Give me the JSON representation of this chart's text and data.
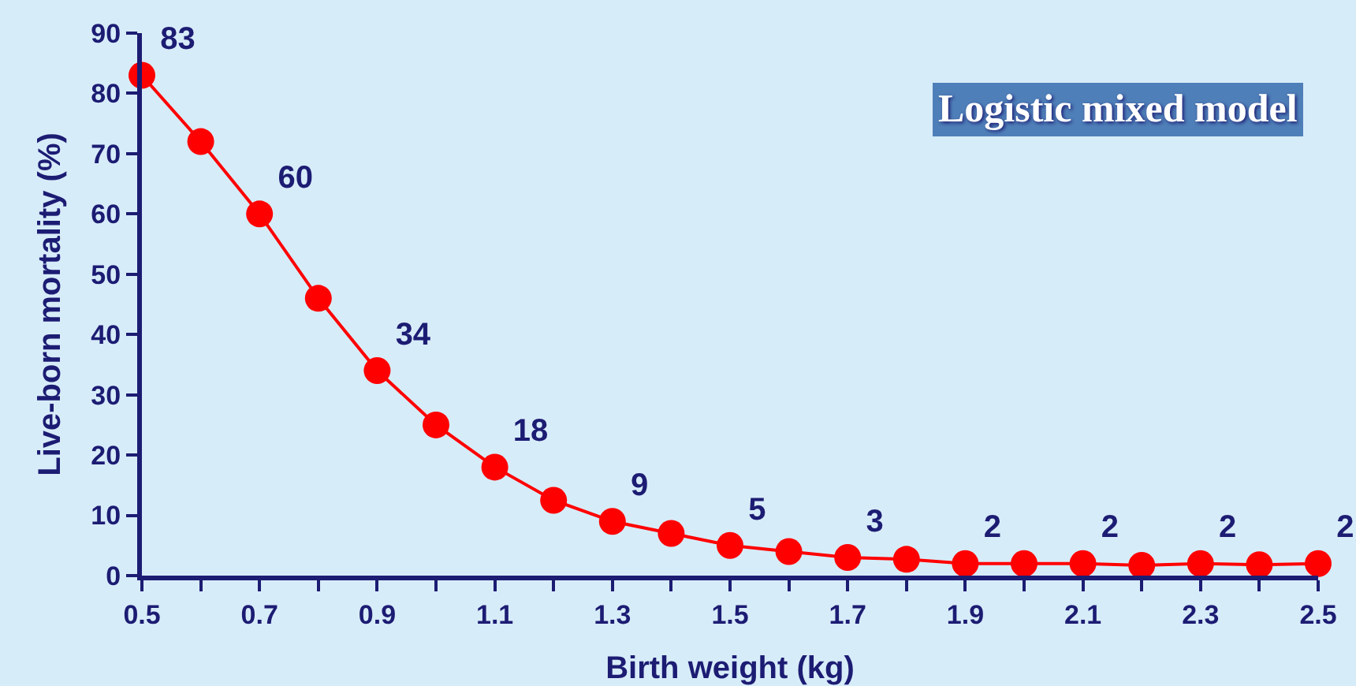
{
  "chart_data": {
    "type": "line",
    "x": [
      0.5,
      0.6,
      0.7,
      0.8,
      0.9,
      1.0,
      1.1,
      1.2,
      1.3,
      1.4,
      1.5,
      1.6,
      1.7,
      1.8,
      1.9,
      2.0,
      2.1,
      2.2,
      2.3,
      2.4,
      2.5
    ],
    "series": [
      {
        "color": "#ff0000",
        "values": [
          83,
          72,
          60,
          46,
          34,
          25,
          18,
          12.5,
          9,
          7,
          5,
          4,
          3,
          2.7,
          2,
          2,
          2,
          1.7,
          2,
          1.8,
          2
        ],
        "value_labels": [
          "83",
          null,
          "60",
          null,
          "34",
          null,
          "18",
          null,
          "9",
          null,
          "5",
          null,
          "3",
          null,
          "2",
          null,
          "2",
          null,
          "2",
          null,
          "2"
        ]
      }
    ],
    "xlabel": "Birth weight (kg)",
    "ylabel": "Live-born mortality (%)",
    "annotations": [
      "Logistic mixed model"
    ],
    "xlim": [
      0.5,
      2.5
    ],
    "ylim": [
      0,
      90
    ],
    "xticks": [
      0.5,
      {
        "value": 0.6,
        "label": null
      },
      0.7,
      {
        "value": 0.8,
        "label": null
      },
      0.9,
      {
        "value": 1.0,
        "label": null
      },
      1.1,
      {
        "value": 1.2,
        "label": null
      },
      1.3,
      {
        "value": 1.4,
        "label": null
      },
      1.5,
      {
        "value": 1.6,
        "label": null
      },
      1.7,
      {
        "value": 1.8,
        "label": null
      },
      1.9,
      {
        "value": 2.0,
        "label": null
      },
      2.1,
      {
        "value": 2.2,
        "label": null
      },
      2.3,
      {
        "value": 2.4,
        "label": null
      },
      2.5
    ],
    "yticks": [
      0,
      10,
      20,
      30,
      40,
      50,
      60,
      70,
      80,
      90
    ],
    "grid": false,
    "marker": "circle",
    "line_style": "solid"
  }
}
